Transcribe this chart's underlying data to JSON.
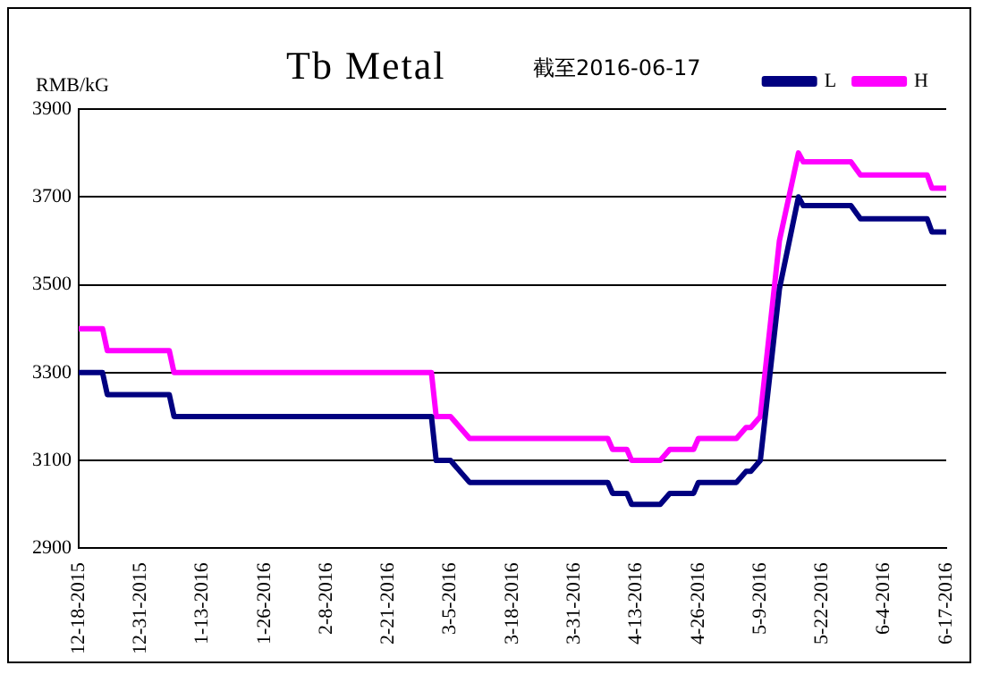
{
  "chart_data": {
    "type": "line",
    "title": "Tb Metal",
    "subtitle": "截至2016-06-17",
    "ylabel": "RMB/kG",
    "x": [
      "2015-12-18",
      "2015-12-23",
      "2015-12-24",
      "2016-01-06",
      "2016-01-07",
      "2016-03-01",
      "2016-03-02",
      "2016-03-05",
      "2016-03-09",
      "2016-04-07",
      "2016-04-08",
      "2016-04-11",
      "2016-04-12",
      "2016-04-18",
      "2016-04-20",
      "2016-04-25",
      "2016-04-26",
      "2016-05-04",
      "2016-05-06",
      "2016-05-07",
      "2016-05-09",
      "2016-05-13",
      "2016-05-17",
      "2016-05-18",
      "2016-05-28",
      "2016-05-30",
      "2016-06-13",
      "2016-06-14",
      "2016-06-17"
    ],
    "series": [
      {
        "name": "L",
        "color": "#000080",
        "values": [
          3300,
          3300,
          3250,
          3250,
          3200,
          3200,
          3100,
          3100,
          3050,
          3050,
          3025,
          3025,
          3000,
          3000,
          3025,
          3025,
          3050,
          3050,
          3075,
          3075,
          3100,
          3490,
          3700,
          3680,
          3680,
          3650,
          3650,
          3620,
          3620
        ]
      },
      {
        "name": "H",
        "color": "#ff00ff",
        "values": [
          3400,
          3400,
          3350,
          3350,
          3300,
          3300,
          3200,
          3200,
          3150,
          3150,
          3125,
          3125,
          3100,
          3100,
          3125,
          3125,
          3150,
          3150,
          3175,
          3175,
          3200,
          3600,
          3800,
          3780,
          3780,
          3750,
          3750,
          3720,
          3720
        ]
      }
    ],
    "xlim": [
      "2015-12-18",
      "2016-06-17"
    ],
    "xticks": [
      {
        "value": "2015-12-18",
        "label": "12-18-2015"
      },
      {
        "value": "2015-12-31",
        "label": "12-31-2015"
      },
      {
        "value": "2016-01-13",
        "label": "1-13-2016"
      },
      {
        "value": "2016-01-26",
        "label": "1-26-2016"
      },
      {
        "value": "2016-02-08",
        "label": "2-8-2016"
      },
      {
        "value": "2016-02-21",
        "label": "2-21-2016"
      },
      {
        "value": "2016-03-05",
        "label": "3-5-2016"
      },
      {
        "value": "2016-03-18",
        "label": "3-18-2016"
      },
      {
        "value": "2016-03-31",
        "label": "3-31-2016"
      },
      {
        "value": "2016-04-13",
        "label": "4-13-2016"
      },
      {
        "value": "2016-04-26",
        "label": "4-26-2016"
      },
      {
        "value": "2016-05-09",
        "label": "5-9-2016"
      },
      {
        "value": "2016-05-22",
        "label": "5-22-2016"
      },
      {
        "value": "2016-06-04",
        "label": "6-4-2016"
      },
      {
        "value": "2016-06-17",
        "label": "6-17-2016"
      }
    ],
    "ylim": [
      2900,
      3900
    ],
    "yticks": [
      2900,
      3100,
      3300,
      3500,
      3700,
      3900
    ],
    "grid": "y",
    "legend": "top right",
    "marker": "none",
    "line_style": "solid"
  }
}
